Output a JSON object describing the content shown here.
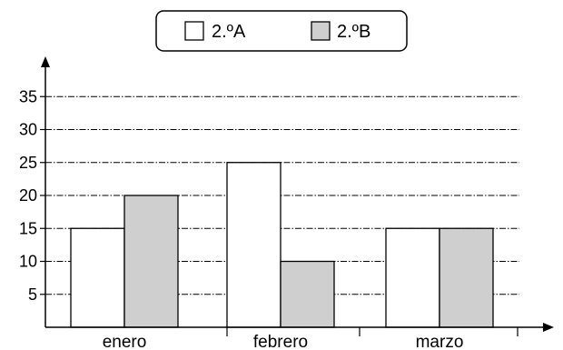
{
  "chart_data": {
    "type": "bar",
    "categories": [
      "enero",
      "febrero",
      "marzo"
    ],
    "series": [
      {
        "name": "2.ºA",
        "values": [
          15,
          25,
          15
        ],
        "color": "#ffffff"
      },
      {
        "name": "2.ºB",
        "values": [
          20,
          10,
          15
        ],
        "color": "#cfcfcf"
      }
    ],
    "yticks": [
      5,
      10,
      15,
      20,
      25,
      30,
      35
    ],
    "ylim": [
      0,
      35
    ],
    "grid": "dash-dot horizontal",
    "legend_position": "top-center",
    "title": "",
    "xlabel": "",
    "ylabel": ""
  }
}
